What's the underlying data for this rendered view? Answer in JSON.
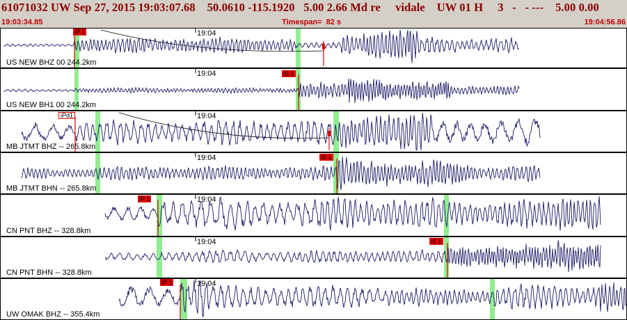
{
  "header": {
    "event_line": "61071032 UW Sep 27, 2015 19:03:07.68    50.0610 -115.1920   5.00 2.66 Md re     vidale    UW 01 H     3   -   - ---    5.00 0.00"
  },
  "time_bar": {
    "start": "19:03:34.85",
    "timespan": "Timespan=  82 s",
    "end": "19:04:56.86"
  },
  "colors": {
    "trace": "#1a1a66",
    "pick": "#e00000",
    "window": "#90ee90",
    "header_text": "#8b0000",
    "bar_background": "#d4d0c8"
  },
  "panels": [
    {
      "channel": "US NEW BHZ 00 244.2km",
      "minute": "19:04",
      "picks": [
        {
          "label": "iP 1",
          "style": "solid"
        }
      ]
    },
    {
      "channel": "US NEW BH1 00 244.2km",
      "minute": "19:04",
      "picks": [
        {
          "label": "iS 1",
          "style": "solid"
        }
      ]
    },
    {
      "channel": "MB JTMT BHZ -- 265.8km",
      "minute": "19:04",
      "picks": [
        {
          "label": "iPd1",
          "style": "outline"
        }
      ]
    },
    {
      "channel": "MB JTMT BHN -- 265.8km",
      "minute": "19:04",
      "picks": [
        {
          "label": "iS 1",
          "style": "solid"
        }
      ]
    },
    {
      "channel": "CN PNT BHZ -- 328.8km",
      "minute": "19:04",
      "picks": [
        {
          "label": "iP 1",
          "style": "solid"
        }
      ]
    },
    {
      "channel": "CN PNT BHN -- 328.8km",
      "minute": "19:04",
      "picks": [
        {
          "label": "iS 1",
          "style": "solid"
        }
      ]
    },
    {
      "channel": "UW OMAK BHZ -- 355.4km",
      "minute": "19:04",
      "picks": [
        {
          "label": "iP 1",
          "style": "solid"
        }
      ]
    }
  ]
}
